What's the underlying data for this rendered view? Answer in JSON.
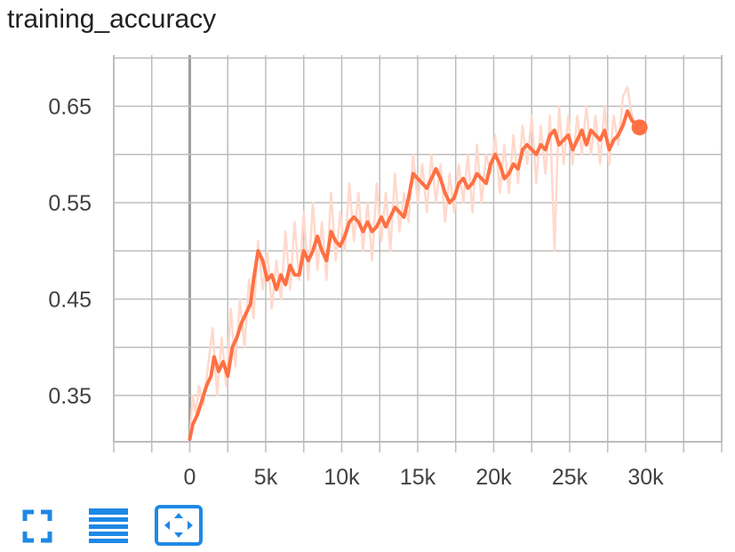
{
  "chart_data": {
    "type": "line",
    "title": "training_accuracy",
    "xlabel": "",
    "ylabel": "",
    "xlim": [
      -5000,
      35000
    ],
    "ylim": [
      0.302,
      0.703
    ],
    "x_ticks": [
      0,
      5000,
      10000,
      15000,
      20000,
      25000,
      30000
    ],
    "x_tick_labels": [
      "0",
      "5k",
      "10k",
      "15k",
      "20k",
      "25k",
      "30k"
    ],
    "y_ticks": [
      0.35,
      0.45,
      0.55,
      0.65
    ],
    "y_tick_labels": [
      "0.35",
      "0.45",
      "0.55",
      "0.65"
    ],
    "grid": true,
    "colors": {
      "smoothed": "#ff7043",
      "raw": "#ffd9cc",
      "grid": "#bdbdbd",
      "zero_line": "#9e9e9e"
    },
    "series": [
      {
        "style": "smoothed",
        "points": [
          [
            0,
            0.305
          ],
          [
            200,
            0.32
          ],
          [
            500,
            0.33
          ],
          [
            800,
            0.345
          ],
          [
            1100,
            0.36
          ],
          [
            1400,
            0.37
          ],
          [
            1600,
            0.39
          ],
          [
            1900,
            0.375
          ],
          [
            2200,
            0.385
          ],
          [
            2500,
            0.37
          ],
          [
            2800,
            0.4
          ],
          [
            3100,
            0.41
          ],
          [
            3400,
            0.425
          ],
          [
            3700,
            0.435
          ],
          [
            4000,
            0.445
          ],
          [
            4200,
            0.47
          ],
          [
            4500,
            0.5
          ],
          [
            4800,
            0.49
          ],
          [
            5100,
            0.47
          ],
          [
            5400,
            0.475
          ],
          [
            5700,
            0.46
          ],
          [
            6000,
            0.475
          ],
          [
            6300,
            0.465
          ],
          [
            6600,
            0.485
          ],
          [
            6900,
            0.475
          ],
          [
            7200,
            0.475
          ],
          [
            7500,
            0.5
          ],
          [
            7800,
            0.49
          ],
          [
            8100,
            0.5
          ],
          [
            8400,
            0.515
          ],
          [
            8700,
            0.5
          ],
          [
            9000,
            0.49
          ],
          [
            9300,
            0.52
          ],
          [
            9600,
            0.51
          ],
          [
            9900,
            0.505
          ],
          [
            10200,
            0.515
          ],
          [
            10500,
            0.53
          ],
          [
            10800,
            0.535
          ],
          [
            11100,
            0.53
          ],
          [
            11400,
            0.52
          ],
          [
            11700,
            0.53
          ],
          [
            12000,
            0.52
          ],
          [
            12300,
            0.525
          ],
          [
            12600,
            0.535
          ],
          [
            12900,
            0.525
          ],
          [
            13200,
            0.535
          ],
          [
            13500,
            0.545
          ],
          [
            13800,
            0.54
          ],
          [
            14100,
            0.535
          ],
          [
            14400,
            0.555
          ],
          [
            14700,
            0.58
          ],
          [
            15000,
            0.575
          ],
          [
            15300,
            0.57
          ],
          [
            15600,
            0.565
          ],
          [
            15900,
            0.575
          ],
          [
            16200,
            0.585
          ],
          [
            16500,
            0.575
          ],
          [
            16800,
            0.56
          ],
          [
            17100,
            0.55
          ],
          [
            17400,
            0.555
          ],
          [
            17700,
            0.57
          ],
          [
            18000,
            0.575
          ],
          [
            18300,
            0.565
          ],
          [
            18600,
            0.57
          ],
          [
            18900,
            0.58
          ],
          [
            19200,
            0.575
          ],
          [
            19500,
            0.57
          ],
          [
            19800,
            0.59
          ],
          [
            20100,
            0.6
          ],
          [
            20400,
            0.59
          ],
          [
            20700,
            0.575
          ],
          [
            21000,
            0.58
          ],
          [
            21300,
            0.59
          ],
          [
            21600,
            0.585
          ],
          [
            21900,
            0.605
          ],
          [
            22200,
            0.61
          ],
          [
            22500,
            0.605
          ],
          [
            22800,
            0.6
          ],
          [
            23100,
            0.61
          ],
          [
            23400,
            0.605
          ],
          [
            23700,
            0.62
          ],
          [
            24000,
            0.625
          ],
          [
            24300,
            0.61
          ],
          [
            24600,
            0.615
          ],
          [
            24900,
            0.62
          ],
          [
            25200,
            0.605
          ],
          [
            25500,
            0.615
          ],
          [
            25800,
            0.625
          ],
          [
            26100,
            0.61
          ],
          [
            26400,
            0.625
          ],
          [
            26700,
            0.62
          ],
          [
            27000,
            0.615
          ],
          [
            27300,
            0.625
          ],
          [
            27600,
            0.605
          ],
          [
            27900,
            0.615
          ],
          [
            28200,
            0.62
          ],
          [
            28500,
            0.63
          ],
          [
            28800,
            0.645
          ],
          [
            29100,
            0.635
          ],
          [
            29400,
            0.63
          ],
          [
            29600,
            0.628
          ]
        ]
      },
      {
        "style": "raw",
        "points": [
          [
            0,
            0.305
          ],
          [
            200,
            0.35
          ],
          [
            400,
            0.33
          ],
          [
            600,
            0.36
          ],
          [
            900,
            0.34
          ],
          [
            1200,
            0.38
          ],
          [
            1500,
            0.42
          ],
          [
            1800,
            0.35
          ],
          [
            2100,
            0.41
          ],
          [
            2400,
            0.36
          ],
          [
            2700,
            0.44
          ],
          [
            3000,
            0.38
          ],
          [
            3300,
            0.45
          ],
          [
            3600,
            0.4
          ],
          [
            3900,
            0.47
          ],
          [
            4200,
            0.43
          ],
          [
            4500,
            0.51
          ],
          [
            4800,
            0.46
          ],
          [
            5100,
            0.5
          ],
          [
            5400,
            0.44
          ],
          [
            5700,
            0.49
          ],
          [
            6000,
            0.45
          ],
          [
            6300,
            0.52
          ],
          [
            6600,
            0.46
          ],
          [
            6900,
            0.53
          ],
          [
            7200,
            0.47
          ],
          [
            7500,
            0.54
          ],
          [
            7800,
            0.47
          ],
          [
            8100,
            0.55
          ],
          [
            8400,
            0.48
          ],
          [
            8700,
            0.53
          ],
          [
            9000,
            0.47
          ],
          [
            9300,
            0.56
          ],
          [
            9600,
            0.49
          ],
          [
            9900,
            0.54
          ],
          [
            10200,
            0.5
          ],
          [
            10500,
            0.57
          ],
          [
            10800,
            0.51
          ],
          [
            11100,
            0.56
          ],
          [
            11400,
            0.5
          ],
          [
            11700,
            0.55
          ],
          [
            12000,
            0.49
          ],
          [
            12300,
            0.57
          ],
          [
            12600,
            0.51
          ],
          [
            12900,
            0.56
          ],
          [
            13200,
            0.5
          ],
          [
            13500,
            0.58
          ],
          [
            13800,
            0.52
          ],
          [
            14100,
            0.56
          ],
          [
            14400,
            0.53
          ],
          [
            14700,
            0.6
          ],
          [
            15000,
            0.55
          ],
          [
            15300,
            0.59
          ],
          [
            15600,
            0.54
          ],
          [
            15900,
            0.6
          ],
          [
            16200,
            0.55
          ],
          [
            16500,
            0.59
          ],
          [
            16800,
            0.53
          ],
          [
            17100,
            0.58
          ],
          [
            17400,
            0.54
          ],
          [
            17700,
            0.59
          ],
          [
            18000,
            0.55
          ],
          [
            18300,
            0.6
          ],
          [
            18600,
            0.54
          ],
          [
            18900,
            0.61
          ],
          [
            19200,
            0.55
          ],
          [
            19500,
            0.6
          ],
          [
            19800,
            0.58
          ],
          [
            20100,
            0.62
          ],
          [
            20400,
            0.56
          ],
          [
            20700,
            0.61
          ],
          [
            21000,
            0.56
          ],
          [
            21300,
            0.62
          ],
          [
            21600,
            0.57
          ],
          [
            21900,
            0.63
          ],
          [
            22200,
            0.59
          ],
          [
            22500,
            0.64
          ],
          [
            22800,
            0.57
          ],
          [
            23100,
            0.63
          ],
          [
            23400,
            0.58
          ],
          [
            23700,
            0.64
          ],
          [
            24000,
            0.5
          ],
          [
            24300,
            0.65
          ],
          [
            24600,
            0.59
          ],
          [
            24900,
            0.64
          ],
          [
            25200,
            0.59
          ],
          [
            25500,
            0.64
          ],
          [
            25800,
            0.6
          ],
          [
            26100,
            0.65
          ],
          [
            26400,
            0.6
          ],
          [
            26700,
            0.64
          ],
          [
            27000,
            0.59
          ],
          [
            27300,
            0.65
          ],
          [
            27600,
            0.59
          ],
          [
            27900,
            0.64
          ],
          [
            28200,
            0.61
          ],
          [
            28500,
            0.66
          ],
          [
            28800,
            0.67
          ],
          [
            29100,
            0.64
          ],
          [
            29400,
            0.63
          ],
          [
            29600,
            0.628
          ]
        ]
      }
    ]
  },
  "toolbar": {
    "buttons": [
      {
        "icon": "fullscreen-icon",
        "label": ""
      },
      {
        "icon": "lines-icon",
        "label": ""
      },
      {
        "icon": "fit-domain-icon",
        "label": ""
      }
    ],
    "accent": "#1e88e5"
  }
}
